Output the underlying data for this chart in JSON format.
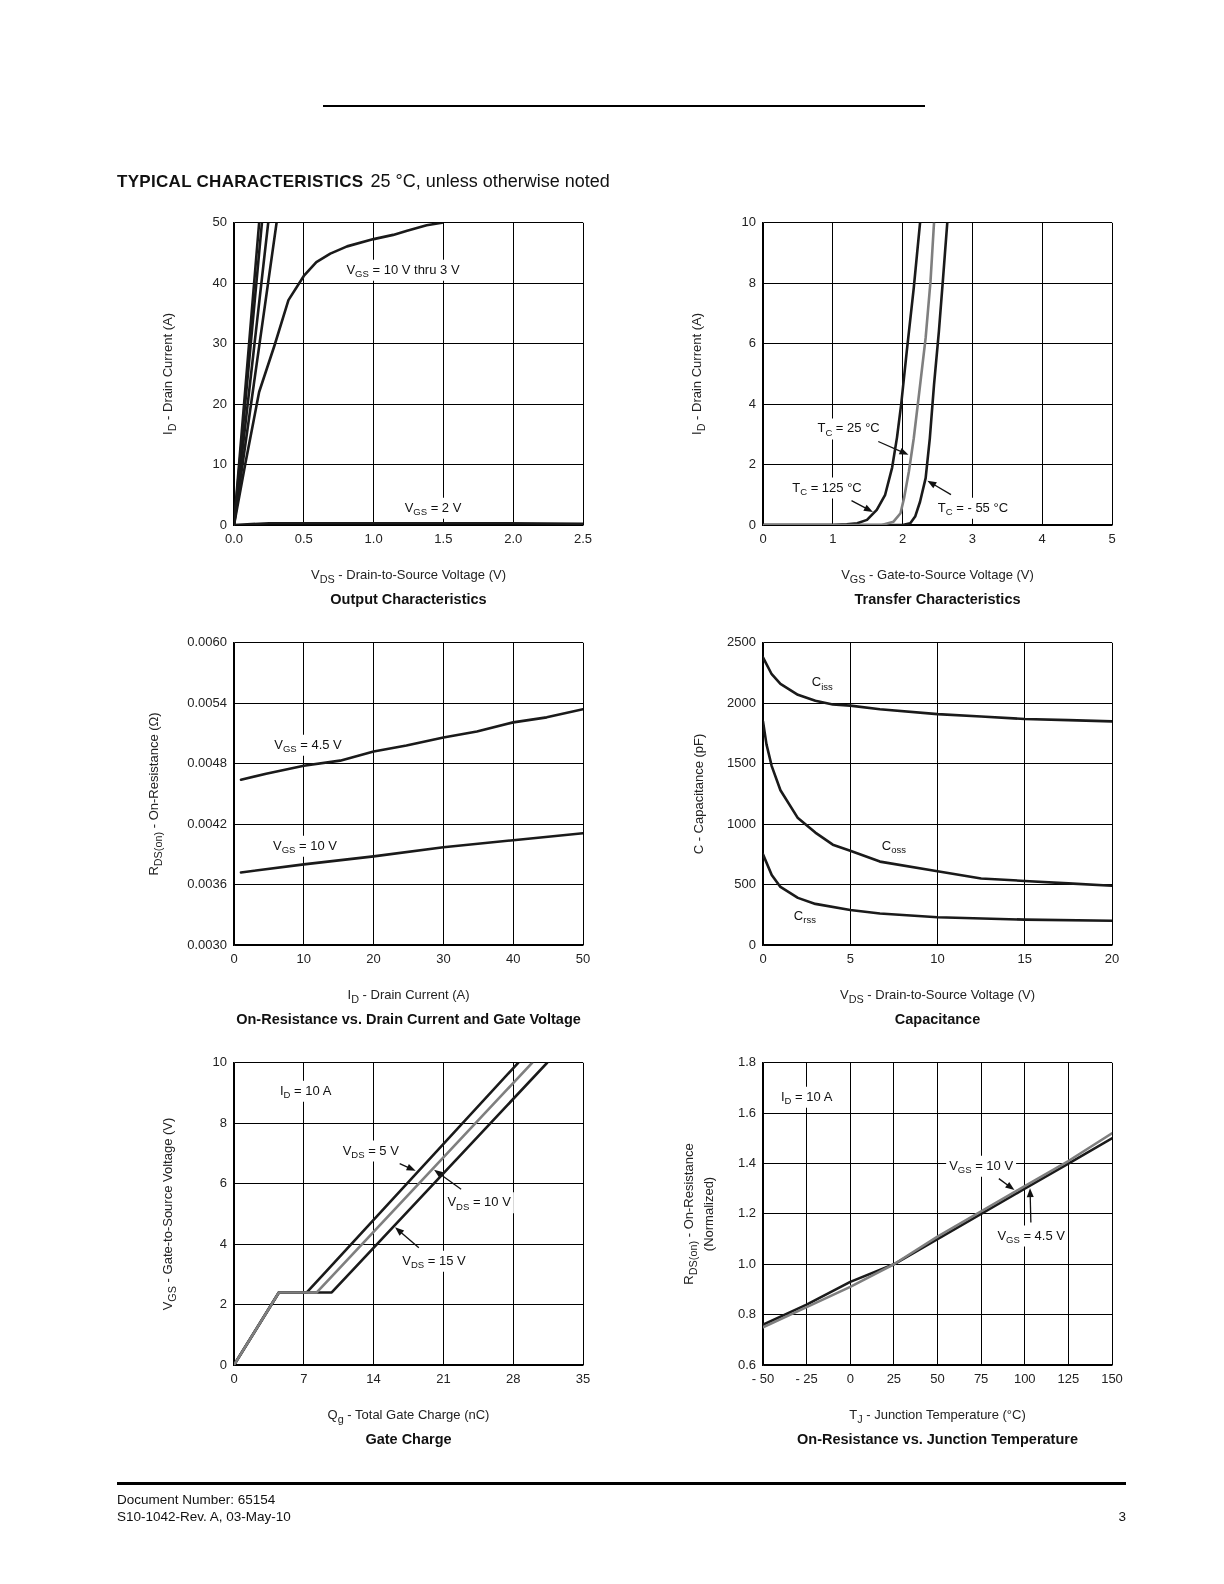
{
  "chart_data": [
    {
      "type": "line",
      "title": "Output Characteristics",
      "xlabel": "V$_{DS}$ - Drain-to-Source Voltage (V)",
      "ylabel": "I$_{D}$ - Drain Current (A)",
      "xlim": [
        0,
        2.5
      ],
      "xticks": [
        {
          "value": 0,
          "label": "0.0"
        },
        0.5,
        {
          "value": 1,
          "label": "1.0"
        },
        1.5,
        {
          "value": 2,
          "label": "2.0"
        },
        2.5
      ],
      "ylim": [
        0,
        50
      ],
      "yticks": [
        0,
        10,
        20,
        30,
        40,
        50
      ],
      "grid": true,
      "series": [
        {
          "color": "#1a1a1a",
          "x": [
            0,
            0.18
          ],
          "values": [
            0,
            50
          ]
        },
        {
          "color": "#1a1a1a",
          "x": [
            0,
            0.2
          ],
          "values": [
            0,
            50
          ]
        },
        {
          "color": "#1a1a1a",
          "x": [
            0,
            0.245
          ],
          "values": [
            0,
            50
          ]
        },
        {
          "color": "#1a1a1a",
          "x": [
            0,
            0.305
          ],
          "values": [
            0,
            50
          ]
        },
        {
          "color": "#1a1a1a",
          "x": [
            0,
            0.08,
            0.18,
            0.29,
            0.39,
            0.5,
            0.59,
            0.69,
            0.81,
            1.0,
            1.14,
            1.24,
            1.38,
            1.49
          ],
          "values": [
            0,
            10,
            22,
            29.7,
            37.2,
            41.2,
            43.5,
            44.9,
            46.1,
            47.3,
            48,
            48.7,
            49.6,
            50
          ]
        },
        {
          "color": "#1a1a1a",
          "x": [
            0,
            0.25,
            1.9,
            2.5
          ],
          "values": [
            0,
            0.3,
            0.3,
            0.2
          ]
        }
      ],
      "annotations": [
        "TYPICAL CHARACTERISTICS",
        "25 °C, unless otherwise noted",
        "V$_{GS}$ = 10 V thru 3 V",
        "V$_{GS}$ = 2 V"
      ]
    },
    {
      "type": "line",
      "title": "Transfer Characteristics",
      "xlabel": "V$_{GS}$ - Gate-to-Source Voltage (V)",
      "ylabel": "I$_{D}$ - Drain Current (A)",
      "xlim": [
        0,
        5
      ],
      "xticks": [
        0,
        1,
        2,
        3,
        4,
        5
      ],
      "ylim": [
        0,
        10
      ],
      "yticks": [
        0,
        2,
        4,
        6,
        8,
        10
      ],
      "grid": true,
      "series": [
        {
          "color": "#7f7f7f",
          "x": [
            0,
            1.7,
            1.87,
            1.97,
            2.02,
            2.09,
            2.16,
            2.24,
            2.33,
            2.4,
            2.45
          ],
          "values": [
            0,
            0,
            0.11,
            0.39,
            0.88,
            1.77,
            2.87,
            4.42,
            6.19,
            8.07,
            10
          ]
        },
        {
          "color": "#1a1a1a",
          "x": [
            0,
            1.0,
            1.2,
            1.35,
            1.49,
            1.63,
            1.75,
            1.85,
            1.92,
            1.98,
            2.06,
            2.16,
            2.25
          ],
          "values": [
            0,
            0,
            0.02,
            0.06,
            0.17,
            0.5,
            1.0,
            1.9,
            2.9,
            4.0,
            5.75,
            7.85,
            10
          ]
        },
        {
          "color": "#1a1a1a",
          "x": [
            0,
            2.0,
            2.11,
            2.18,
            2.25,
            2.33,
            2.39,
            2.45,
            2.52,
            2.58,
            2.64
          ],
          "values": [
            0,
            0,
            0.06,
            0.28,
            0.77,
            1.55,
            2.87,
            4.64,
            6.41,
            8.18,
            10
          ]
        }
      ],
      "annotations": [
        {
          "text": "T$_{C}$ = 25 °C",
          "x": 2.11,
          "y": 2.3
        },
        {
          "text": "T$_{C}$ = 125 °C",
          "x": 1.6,
          "y": 0.4
        },
        {
          "text": "T$_{C}$ = - 55 °C",
          "x": 2.33,
          "y": 1.5
        }
      ]
    },
    {
      "type": "line",
      "title": "On-Resistance vs. Drain Current and Gate Voltage",
      "xlabel": "I$_{D}$ - Drain Current (A)",
      "ylabel": "R$_{DS(on)}$ - On-Resistance (Ω)",
      "xlim": [
        0,
        50
      ],
      "xticks": [
        0,
        10,
        20,
        30,
        40,
        50
      ],
      "ylim": [
        0.003,
        0.006
      ],
      "yticks": [
        {
          "value": 0.003,
          "label": "0.0030"
        },
        0.0036,
        0.0042,
        0.0048,
        0.0054,
        {
          "value": 0.006,
          "label": "0.0060"
        }
      ],
      "grid": true,
      "series": [
        {
          "color": "#1a1a1a",
          "x": [
            1,
            4.6,
            10,
            15.2,
            20,
            24.7,
            30,
            34.8,
            40,
            44.8,
            50
          ],
          "values": [
            0.00464,
            0.0047,
            0.00478,
            0.00483,
            0.00492,
            0.00498,
            0.00506,
            0.00512,
            0.00521,
            0.00526,
            0.00534
          ]
        },
        {
          "color": "#1a1a1a",
          "x": [
            1,
            10,
            20,
            30,
            40,
            50
          ],
          "values": [
            0.00372,
            0.0038,
            0.00388,
            0.00397,
            0.00404,
            0.00411
          ]
        }
      ],
      "annotations": [
        "V$_{GS}$ = 4.5 V",
        "V$_{GS}$ = 10 V"
      ]
    },
    {
      "type": "line",
      "title": "Capacitance",
      "xlabel": "V$_{DS}$ - Drain-to-Source Voltage (V)",
      "ylabel": "C - Capacitance (pF)",
      "xlim": [
        0,
        20
      ],
      "xticks": [
        0,
        5,
        10,
        15,
        20
      ],
      "ylim": [
        0,
        2500
      ],
      "yticks": [
        0,
        500,
        1000,
        1500,
        2000,
        2500
      ],
      "grid": true,
      "series": [
        {
          "color": "#1a1a1a",
          "x": [
            0,
            0.5,
            1,
            2,
            3,
            4,
            5,
            6.7,
            10,
            12.5,
            15,
            17.5,
            20
          ],
          "values": [
            2380,
            2240,
            2160,
            2070,
            2020,
            1990,
            1980,
            1950,
            1910,
            1890,
            1870,
            1860,
            1850
          ]
        },
        {
          "color": "#1a1a1a",
          "x": [
            0,
            0.2,
            0.5,
            1,
            2,
            3,
            4,
            5,
            6.7,
            10,
            12.5,
            15,
            17.5,
            20
          ],
          "values": [
            1850,
            1660,
            1480,
            1280,
            1050,
            930,
            830,
            780,
            690,
            610,
            550,
            530,
            510,
            490
          ]
        },
        {
          "color": "#1a1a1a",
          "x": [
            0,
            0.5,
            1,
            2,
            3,
            5,
            6.7,
            10,
            15,
            20
          ],
          "values": [
            750,
            580,
            480,
            390,
            340,
            290,
            260,
            230,
            210,
            200
          ]
        }
      ],
      "annotations": [
        {
          "text": "C$_{iss}$",
          "x": 3.4,
          "y": 2180
        },
        {
          "text": "C$_{oss}$",
          "x": 7.5,
          "y": 830
        },
        {
          "text": "C$_{rss}$",
          "x": 2.4,
          "y": 250
        }
      ]
    },
    {
      "type": "line",
      "title": "Gate Charge",
      "xlabel": "Q$_{g}$ - Total Gate Charge (nC)",
      "ylabel": "V$_{GS}$ - Gate-to-Source Voltage (V)",
      "xlim": [
        0,
        35
      ],
      "xticks": [
        0,
        7,
        14,
        21,
        28,
        35
      ],
      "ylim": [
        0,
        10
      ],
      "yticks": [
        0,
        2,
        4,
        6,
        8,
        10
      ],
      "grid": true,
      "series": [
        {
          "color": "#7f7f7f",
          "x": [
            0,
            4.5,
            8.3,
            29.9
          ],
          "values": [
            0,
            2.4,
            2.4,
            10
          ]
        },
        {
          "color": "#1a1a1a",
          "x": [
            0,
            4.5,
            7.3,
            28.5
          ],
          "values": [
            0,
            2.4,
            2.4,
            10
          ]
        },
        {
          "color": "#1a1a1a",
          "x": [
            0,
            4.5,
            9.8,
            31.4
          ],
          "values": [
            0,
            2.4,
            2.4,
            10
          ]
        }
      ],
      "annotations": [
        "I$_{D}$ = 10 A",
        {
          "text": "V$_{DS}$ = 5 V",
          "x": 18.4,
          "y": 6.4
        },
        {
          "text": "V$_{DS}$ = 10 V",
          "x": 19.9,
          "y": 6.5
        },
        {
          "text": "V$_{DS}$ = 15 V",
          "x": 16,
          "y": 4.6
        }
      ]
    },
    {
      "type": "line",
      "title": "On-Resistance vs. Junction Temperature",
      "xlabel": "T$_{J}$ - Junction Temperature (°C)",
      "ylabel": "R$_{DS(on)}$ - On-Resistance\n(Normalized)",
      "xlim": [
        -50,
        150
      ],
      "xticks": [
        {
          "value": -50,
          "label": "- 50"
        },
        {
          "value": -25,
          "label": "- 25"
        },
        0,
        25,
        50,
        75,
        100,
        125,
        150
      ],
      "ylim": [
        0.6,
        1.8
      ],
      "yticks": [
        0.6,
        0.8,
        {
          "value": 1,
          "label": "1.0"
        },
        1.2,
        1.4,
        1.6,
        1.8
      ],
      "grid": true,
      "series": [
        {
          "color": "#7f7f7f",
          "x": [
            -50,
            -25,
            0,
            25,
            50,
            75,
            100,
            125,
            150
          ],
          "values": [
            0.75,
            0.83,
            0.91,
            1.0,
            1.11,
            1.21,
            1.31,
            1.41,
            1.52
          ]
        },
        {
          "color": "#1a1a1a",
          "x": [
            -50,
            -25,
            0,
            25,
            50,
            75,
            100,
            125,
            150
          ],
          "values": [
            0.76,
            0.84,
            0.93,
            1.0,
            1.1,
            1.2,
            1.3,
            1.4,
            1.5
          ]
        }
      ],
      "annotations": [
        "I$_{D}$ = 10 A",
        "Document Number: 65154",
        "S10-1042-Rev. A, 03-May-10",
        "3",
        {
          "text": "V$_{GS}$ = 10 V",
          "x": 95,
          "y": 1.29
        },
        {
          "text": "V$_{GS}$ = 4.5 V",
          "x": 103,
          "y": 1.31
        }
      ]
    }
  ]
}
